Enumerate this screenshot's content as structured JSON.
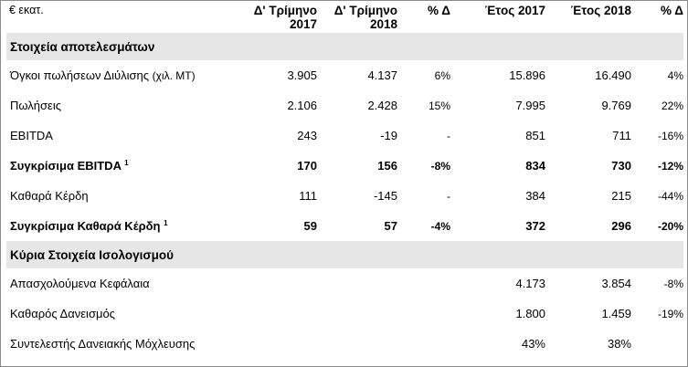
{
  "header": {
    "label": "€ εκατ.",
    "col1": [
      "Δ' Τρίμηνο",
      "2017"
    ],
    "col2": [
      "Δ' Τρίμηνο",
      "2018"
    ],
    "col3": "% Δ",
    "col4": "Έτος 2017",
    "col5": "Έτος 2018",
    "col6": "% Δ"
  },
  "section1": {
    "title": "Στοιχεία αποτελεσμάτων"
  },
  "rows1": [
    {
      "label": "Όγκοι πωλήσεων Διύλισης",
      "label_suffix": "(χιλ. ΜΤ)",
      "q2017": "3.905",
      "q2018": "4.137",
      "qd": "6%",
      "y2017": "15.896",
      "y2018": "16.490",
      "yd": "4%"
    },
    {
      "label": "Πωλήσεις",
      "q2017": "2.106",
      "q2018": "2.428",
      "qd": "15%",
      "y2017": "7.995",
      "y2018": "9.769",
      "yd": "22%"
    },
    {
      "label": "EBITDA",
      "q2017": "243",
      "q2018": "-19",
      "qd": "-",
      "y2017": "851",
      "y2018": "711",
      "yd": "-16%"
    },
    {
      "label": "Συγκρίσιμα EBITDA",
      "sup": "1",
      "q2017": "170",
      "q2018": "156",
      "qd": "-8%",
      "y2017": "834",
      "y2018": "730",
      "yd": "-12%"
    },
    {
      "label": "Καθαρά Κέρδη",
      "q2017": "111",
      "q2018": "-145",
      "qd": "-",
      "y2017": "384",
      "y2018": "215",
      "yd": "-44%"
    },
    {
      "label": "Συγκρίσιμα Καθαρά Κέρδη",
      "sup": "1",
      "q2017": "59",
      "q2018": "57",
      "qd": "-4%",
      "y2017": "372",
      "y2018": "296",
      "yd": "-20%"
    }
  ],
  "section2": {
    "title": "Κύρια Στοιχεία Ισολογισμού"
  },
  "rows2": [
    {
      "label": "Απασχολούμενα Κεφάλαια",
      "y2017": "4.173",
      "y2018": "3.854",
      "yd": "-8%"
    },
    {
      "label": "Καθαρός Δανεισμός",
      "y2017": "1.800",
      "y2018": "1.459",
      "yd": "-19%"
    },
    {
      "label": "Συντελεστής Δανειακής Μόχλευσης",
      "y2017": "43%",
      "y2018": "38%",
      "yd": ""
    }
  ]
}
